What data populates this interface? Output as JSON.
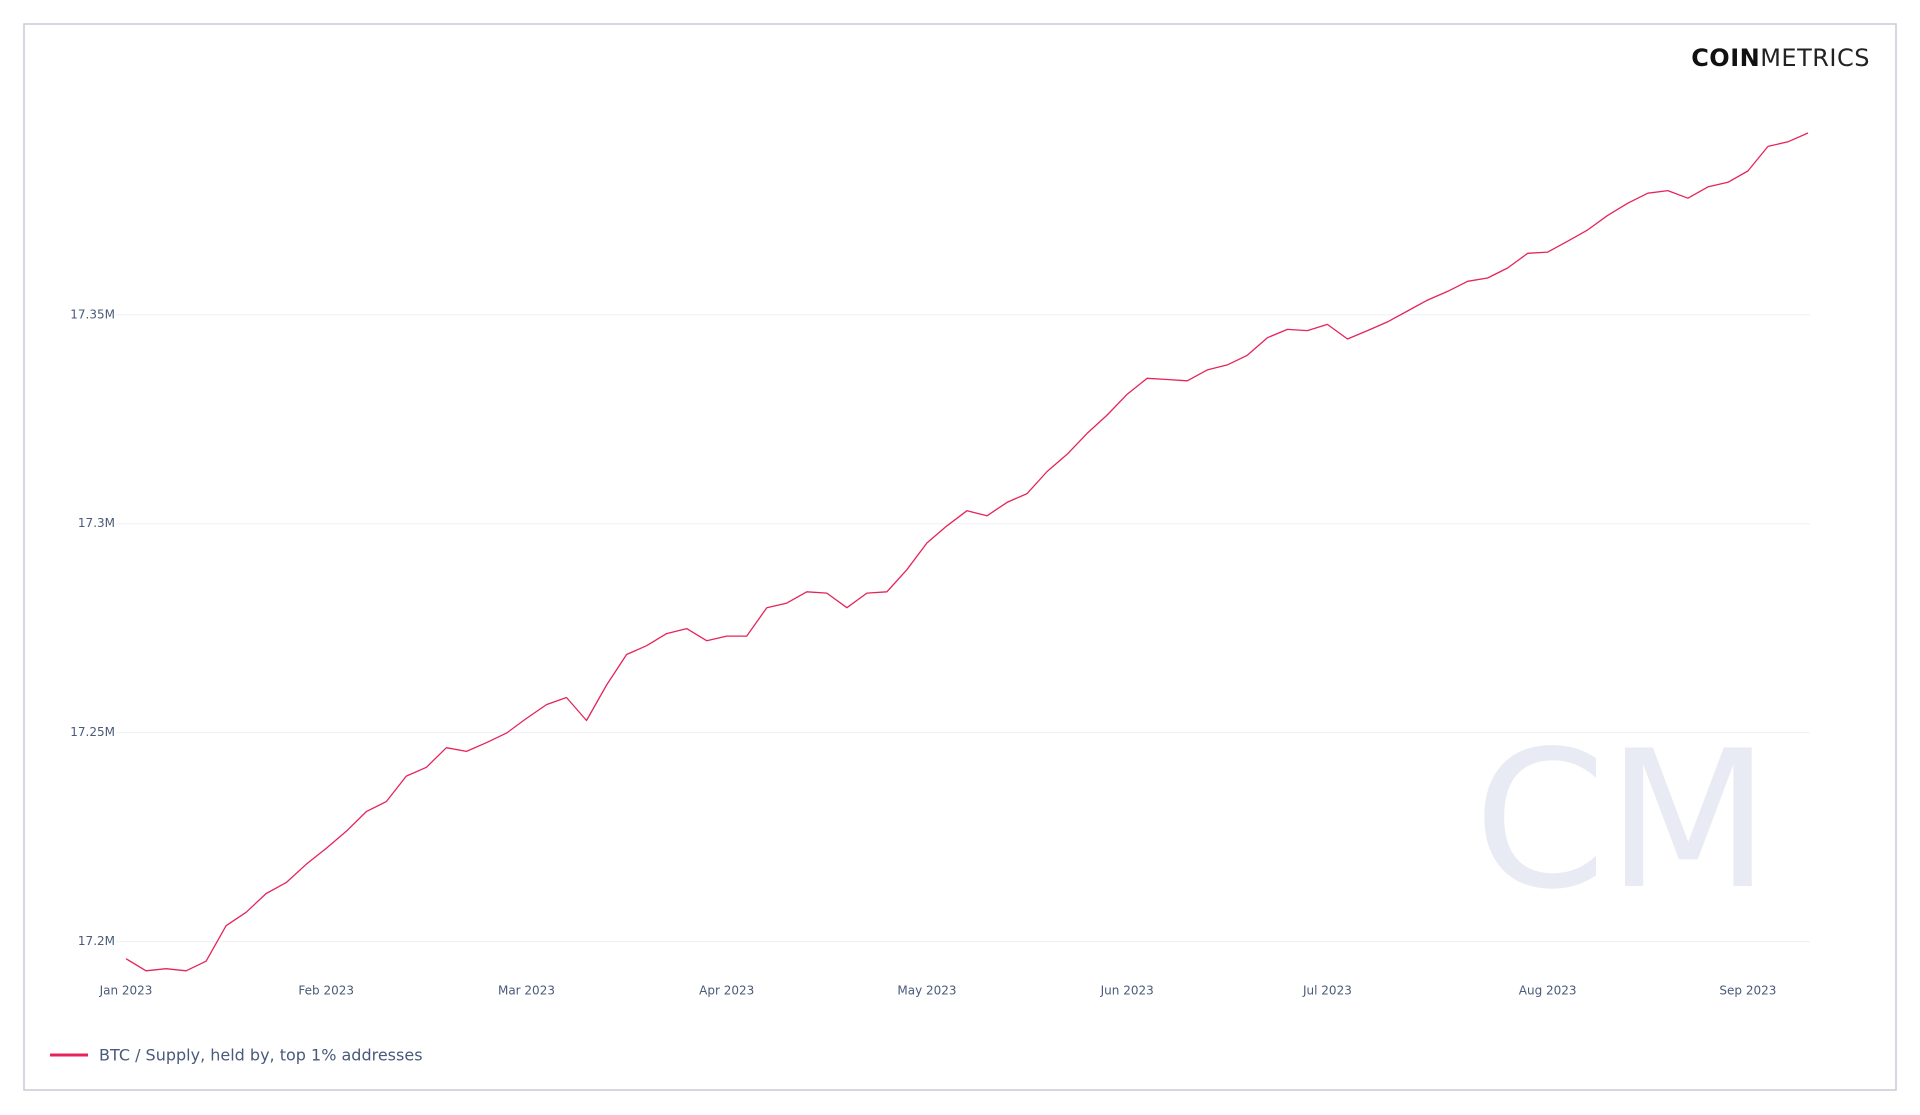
{
  "brand": {
    "bold": "COIN",
    "light": "METRICS",
    "watermark": "CM"
  },
  "chart_data": {
    "type": "line",
    "categories": [
      "Jan 2023",
      null,
      null,
      null,
      null,
      null,
      null,
      null,
      null,
      null,
      "Feb 2023",
      null,
      null,
      null,
      null,
      null,
      null,
      null,
      null,
      null,
      "Mar 2023",
      null,
      null,
      null,
      null,
      null,
      null,
      null,
      null,
      null,
      "Apr 2023",
      null,
      null,
      null,
      null,
      null,
      null,
      null,
      null,
      null,
      "May 2023",
      null,
      null,
      null,
      null,
      null,
      null,
      null,
      null,
      null,
      "Jun 2023",
      null,
      null,
      null,
      null,
      null,
      null,
      null,
      null,
      null,
      "Jul 2023",
      null,
      null,
      null,
      null,
      null,
      null,
      null,
      null,
      null,
      null,
      "Aug 2023",
      null,
      null,
      null,
      null,
      null,
      null,
      null,
      null,
      null,
      "Sep 2023",
      null,
      null,
      null
    ],
    "series": [
      {
        "name": "BTC / Supply, held by, top 1% addresses",
        "color": "#e5245a",
        "values": [
          17195900,
          17193000,
          17193500,
          17193000,
          17195300,
          17203800,
          17207000,
          17211500,
          17214100,
          17218500,
          17222300,
          17226400,
          17231100,
          17233500,
          17239600,
          17241700,
          17246400,
          17245500,
          17247600,
          17249900,
          17253400,
          17256700,
          17258400,
          17252900,
          17261400,
          17268700,
          17270800,
          17273700,
          17274900,
          17272000,
          17273100,
          17273100,
          17279900,
          17281000,
          17283700,
          17283400,
          17279900,
          17283400,
          17283700,
          17289000,
          17295400,
          17299500,
          17303100,
          17301900,
          17305100,
          17307200,
          17312500,
          17316600,
          17321600,
          17326000,
          17331000,
          17334800,
          17334500,
          17334200,
          17336800,
          17338000,
          17340300,
          17344500,
          17346500,
          17346200,
          17347700,
          17344200,
          17346200,
          17348300,
          17350900,
          17353500,
          17355600,
          17358000,
          17358800,
          17361200,
          17364700,
          17365000,
          17367600,
          17370300,
          17373800,
          17376700,
          17379100,
          17379700,
          17377900,
          17380600,
          17381700,
          17384400,
          17390300,
          17391400,
          17393500
        ]
      }
    ],
    "ylim": [
      17192000,
      17399000
    ],
    "yticks": [
      {
        "value": 17200000,
        "label": "17.2M"
      },
      {
        "value": 17250000,
        "label": "17.25M"
      },
      {
        "value": 17300000,
        "label": "17.3M"
      },
      {
        "value": 17350000,
        "label": "17.35M"
      }
    ],
    "grid": true,
    "legend": "bottom-left"
  }
}
